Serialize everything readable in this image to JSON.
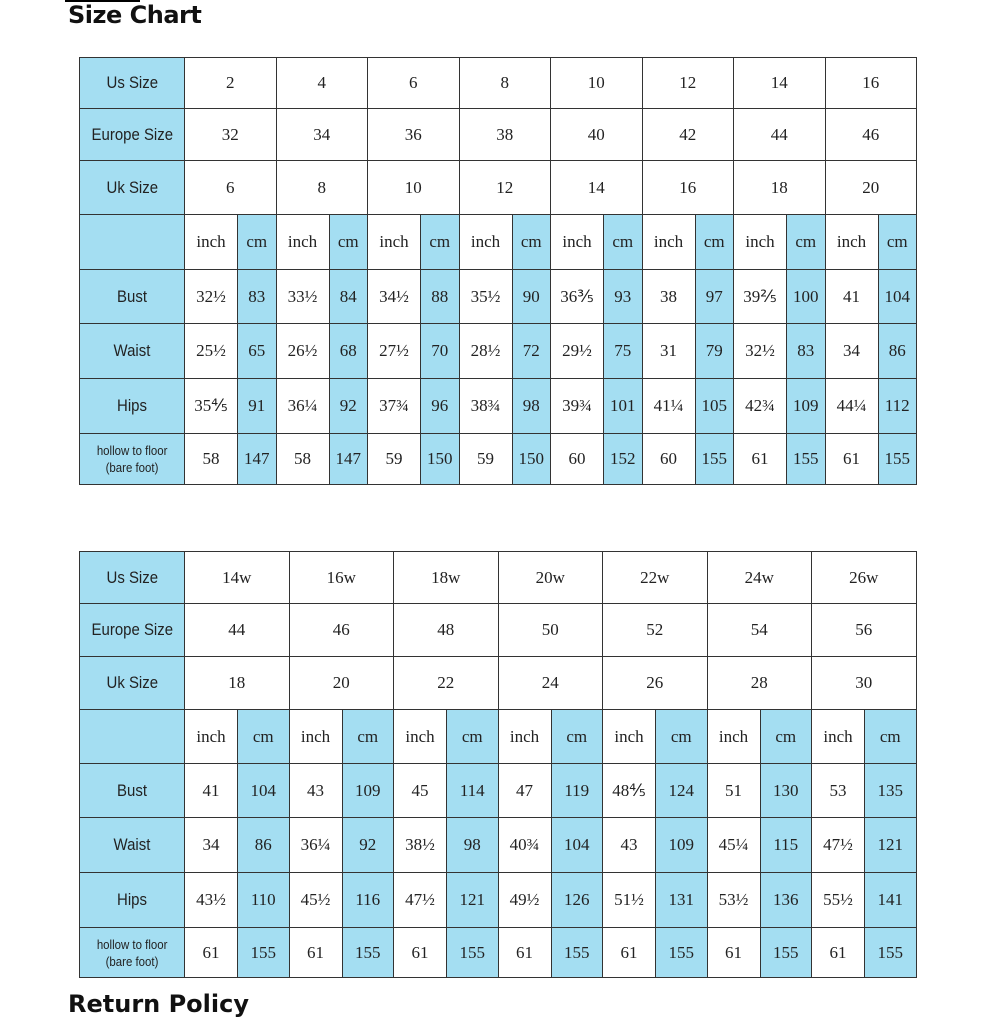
{
  "title": "Size Chart",
  "footer_title": "Return Policy",
  "colors": {
    "header_blue": "#a4def2",
    "border": "#333333"
  },
  "tables": [
    {
      "row_labels": {
        "us": "Us Size",
        "europe": "Europe Size",
        "uk": "Uk Size",
        "bust": "Bust",
        "waist": "Waist",
        "hips": "Hips",
        "hollow_line1": "hollow to floor",
        "hollow_line2": "(bare foot)"
      },
      "unit_inch": "inch",
      "unit_cm": "cm",
      "us": [
        "2",
        "4",
        "6",
        "8",
        "10",
        "12",
        "14",
        "16"
      ],
      "europe": [
        "32",
        "34",
        "36",
        "38",
        "40",
        "42",
        "44",
        "46"
      ],
      "uk": [
        "6",
        "8",
        "10",
        "12",
        "14",
        "16",
        "18",
        "20"
      ],
      "bust": [
        [
          "32½",
          "83"
        ],
        [
          "33½",
          "84"
        ],
        [
          "34½",
          "88"
        ],
        [
          "35½",
          "90"
        ],
        [
          "36⅗",
          "93"
        ],
        [
          "38",
          "97"
        ],
        [
          "39⅖",
          "100"
        ],
        [
          "41",
          "104"
        ]
      ],
      "waist": [
        [
          "25½",
          "65"
        ],
        [
          "26½",
          "68"
        ],
        [
          "27½",
          "70"
        ],
        [
          "28½",
          "72"
        ],
        [
          "29½",
          "75"
        ],
        [
          "31",
          "79"
        ],
        [
          "32½",
          "83"
        ],
        [
          "34",
          "86"
        ]
      ],
      "hips": [
        [
          "35⅘",
          "91"
        ],
        [
          "36¼",
          "92"
        ],
        [
          "37¾",
          "96"
        ],
        [
          "38¾",
          "98"
        ],
        [
          "39¾",
          "101"
        ],
        [
          "41¼",
          "105"
        ],
        [
          "42¾",
          "109"
        ],
        [
          "44¼",
          "112"
        ]
      ],
      "hollow": [
        [
          "58",
          "147"
        ],
        [
          "58",
          "147"
        ],
        [
          "59",
          "150"
        ],
        [
          "59",
          "150"
        ],
        [
          "60",
          "152"
        ],
        [
          "60",
          "155"
        ],
        [
          "61",
          "155"
        ],
        [
          "61",
          "155"
        ]
      ]
    },
    {
      "row_labels": {
        "us": "Us Size",
        "europe": "Europe Size",
        "uk": "Uk Size",
        "bust": "Bust",
        "waist": "Waist",
        "hips": "Hips",
        "hollow_line1": "hollow to floor",
        "hollow_line2": "(bare foot)"
      },
      "unit_inch": "inch",
      "unit_cm": "cm",
      "us": [
        "14w",
        "16w",
        "18w",
        "20w",
        "22w",
        "24w",
        "26w"
      ],
      "europe": [
        "44",
        "46",
        "48",
        "50",
        "52",
        "54",
        "56"
      ],
      "uk": [
        "18",
        "20",
        "22",
        "24",
        "26",
        "28",
        "30"
      ],
      "bust": [
        [
          "41",
          "104"
        ],
        [
          "43",
          "109"
        ],
        [
          "45",
          "114"
        ],
        [
          "47",
          "119"
        ],
        [
          "48⅘",
          "124"
        ],
        [
          "51",
          "130"
        ],
        [
          "53",
          "135"
        ]
      ],
      "waist": [
        [
          "34",
          "86"
        ],
        [
          "36¼",
          "92"
        ],
        [
          "38½",
          "98"
        ],
        [
          "40¾",
          "104"
        ],
        [
          "43",
          "109"
        ],
        [
          "45¼",
          "115"
        ],
        [
          "47½",
          "121"
        ]
      ],
      "hips": [
        [
          "43½",
          "110"
        ],
        [
          "45½",
          "116"
        ],
        [
          "47½",
          "121"
        ],
        [
          "49½",
          "126"
        ],
        [
          "51½",
          "131"
        ],
        [
          "53½",
          "136"
        ],
        [
          "55½",
          "141"
        ]
      ],
      "hollow": [
        [
          "61",
          "155"
        ],
        [
          "61",
          "155"
        ],
        [
          "61",
          "155"
        ],
        [
          "61",
          "155"
        ],
        [
          "61",
          "155"
        ],
        [
          "61",
          "155"
        ],
        [
          "61",
          "155"
        ]
      ]
    }
  ]
}
